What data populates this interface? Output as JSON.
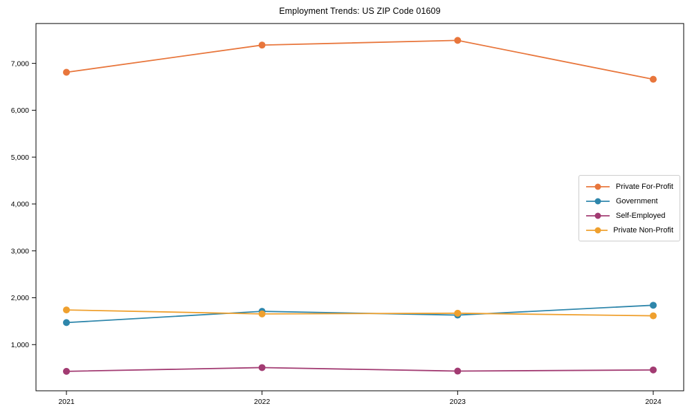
{
  "chart_data": {
    "type": "line",
    "title": "Employment Trends: US ZIP Code 01609",
    "xlabel": "",
    "ylabel": "",
    "grid": false,
    "legend_position": "center-right-inside",
    "categories": [
      "2021",
      "2022",
      "2023",
      "2024"
    ],
    "ylim": [
      15,
      7850
    ],
    "y_ticks": [
      {
        "value": 1000,
        "label": "1,000"
      },
      {
        "value": 2000,
        "label": "2,000"
      },
      {
        "value": 3000,
        "label": "3,000"
      },
      {
        "value": 4000,
        "label": "4,000"
      },
      {
        "value": 5000,
        "label": "5,000"
      },
      {
        "value": 6000,
        "label": "6,000"
      },
      {
        "value": 7000,
        "label": "7,000"
      }
    ],
    "series": [
      {
        "name": "Private For-Profit",
        "color": "#E8763C",
        "values": [
          6810,
          7390,
          7490,
          6660
        ]
      },
      {
        "name": "Government",
        "color": "#2E86AB",
        "values": [
          1470,
          1710,
          1630,
          1840
        ]
      },
      {
        "name": "Self-Employed",
        "color": "#A23B72",
        "values": [
          430,
          510,
          435,
          460
        ]
      },
      {
        "name": "Private Non-Profit",
        "color": "#EFA02E",
        "values": [
          1740,
          1655,
          1670,
          1615
        ]
      }
    ],
    "marker": "circle",
    "marker_radius": 5,
    "line_width": 1.8,
    "axis_color": "#000000",
    "background_color": "#ffffff"
  }
}
